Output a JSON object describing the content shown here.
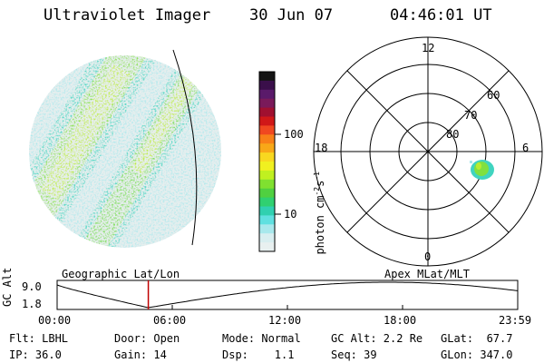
{
  "header": {
    "title": "Ultraviolet Imager",
    "date": "30 Jun 07",
    "time": "04:46:01 UT"
  },
  "colorbar": {
    "label": "photon cm",
    "label_sup1": "-2",
    "label_mid": "s",
    "label_sup2": "-1",
    "ticks": [
      "100",
      "10"
    ],
    "colors": [
      "#141414",
      "#3a0f4a",
      "#5a1a6a",
      "#7a1a5a",
      "#a01030",
      "#d01818",
      "#f04820",
      "#f88018",
      "#f8a818",
      "#f8d820",
      "#f0f020",
      "#c0f020",
      "#80e030",
      "#50d040",
      "#30d070",
      "#30d0b0",
      "#60e0e0",
      "#a8e8ec",
      "#d8eef0",
      "#e8f0f0"
    ],
    "colors_comment": "top to bottom"
  },
  "polar": {
    "labels": [
      "12",
      "6",
      "18",
      "0",
      "60",
      "70",
      "80"
    ]
  },
  "timeline": {
    "ylabel": "GC Alt",
    "yticks": [
      "9.0",
      "1.8"
    ],
    "left_title": "Geographic Lat/Lon",
    "right_title": "Apex MLat/MLT",
    "xticks": [
      "00:00",
      "06:00",
      "12:00",
      "18:00",
      "23:59"
    ],
    "current_time_fraction": 0.198,
    "marker_color": "#c00000"
  },
  "info": {
    "row1": [
      "Flt: LBHL",
      "Door: Open",
      "Mode: Normal",
      "GC Alt: 2.2 Re",
      "GLat:  67.7"
    ],
    "row2": [
      "IP: 36.0",
      "Gain: 14",
      "Dsp:    1.1",
      "Seq: 39",
      "GLon: 347.0"
    ]
  }
}
